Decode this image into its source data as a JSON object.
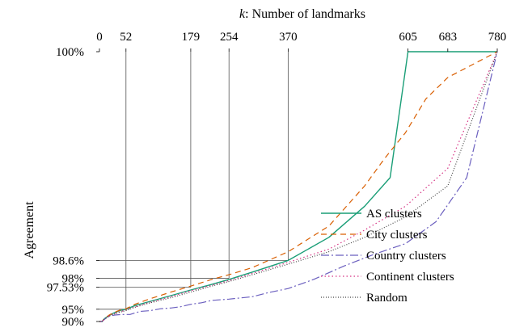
{
  "chart_data": {
    "type": "line",
    "title": "",
    "xlabel_var": "k",
    "xlabel_rest": ": Number of landmarks",
    "ylabel": "Agreement",
    "xlim": [
      0,
      780
    ],
    "ylim": [
      90,
      100
    ],
    "y_scale": "reciprocal",
    "x_ticks": [
      0,
      52,
      179,
      254,
      370,
      605,
      683,
      780
    ],
    "x_tick_labels": [
      "0",
      "52",
      "179",
      "254",
      "370",
      "605",
      "683",
      "780"
    ],
    "y_ticks": [
      90,
      95,
      97.53,
      98,
      98.6,
      100
    ],
    "y_tick_labels": [
      "90%",
      "95%",
      "97.53%",
      "98%",
      "98.6%",
      "100%"
    ],
    "grid": false,
    "legend_position": "lower-right",
    "reference_guides": [
      {
        "x": 52,
        "y": 95
      },
      {
        "x": 179,
        "y": 97.53
      },
      {
        "x": 254,
        "y": 98
      },
      {
        "x": 370,
        "y": 98.6
      }
    ],
    "series": [
      {
        "name": "AS clusters",
        "color": "#1a9e77",
        "dash": "solid",
        "x": [
          0,
          5,
          10,
          15,
          20,
          30,
          40,
          52,
          70,
          100,
          140,
          179,
          220,
          254,
          300,
          370,
          450,
          520,
          570,
          605,
          683,
          780
        ],
        "y": [
          90,
          90,
          91.8,
          92.7,
          93.4,
          94.2,
          94.7,
          95.0,
          95.7,
          96.3,
          96.9,
          97.35,
          97.7,
          97.95,
          98.25,
          98.6,
          99.05,
          99.4,
          99.6,
          100,
          100,
          100
        ]
      },
      {
        "name": "City clusters",
        "color": "#d95f02",
        "dash": "7,5",
        "x": [
          0,
          5,
          10,
          15,
          20,
          30,
          40,
          52,
          70,
          100,
          140,
          179,
          220,
          254,
          300,
          370,
          450,
          520,
          560,
          600,
          640,
          683,
          780
        ],
        "y": [
          90,
          90,
          91.9,
          92.8,
          93.5,
          94.3,
          94.8,
          95.1,
          95.9,
          96.6,
          97.2,
          97.6,
          97.95,
          98.15,
          98.4,
          98.8,
          99.2,
          99.55,
          99.7,
          99.8,
          99.9,
          99.95,
          100
        ]
      },
      {
        "name": "Country clusters",
        "color": "#6b5fbf",
        "dash": "10,3,2,3",
        "x": [
          0,
          5,
          10,
          15,
          20,
          30,
          40,
          50,
          60,
          70,
          80,
          100,
          120,
          140,
          160,
          180,
          200,
          220,
          254,
          300,
          330,
          370,
          420,
          480,
          540,
          600,
          660,
          720,
          780
        ],
        "y": [
          90,
          90,
          91.5,
          92.4,
          93.0,
          93.4,
          93.55,
          93.6,
          93.6,
          94.1,
          94.5,
          94.7,
          95.1,
          95.25,
          95.5,
          95.9,
          96.1,
          96.4,
          96.55,
          96.8,
          97.15,
          97.45,
          97.95,
          98.45,
          98.75,
          98.95,
          99.25,
          99.6,
          100
        ]
      },
      {
        "name": "Continent clusters",
        "color": "#d63384",
        "dash": "1.5,3",
        "x": [
          0,
          5,
          10,
          15,
          20,
          30,
          40,
          52,
          70,
          100,
          140,
          179,
          220,
          254,
          300,
          370,
          450,
          520,
          600,
          683,
          780
        ],
        "y": [
          90,
          90,
          91.7,
          92.5,
          93.2,
          93.9,
          94.4,
          94.8,
          95.5,
          96.2,
          96.8,
          97.3,
          97.65,
          97.9,
          98.2,
          98.55,
          98.85,
          99.15,
          99.4,
          99.65,
          100
        ]
      },
      {
        "name": "Random",
        "color": "#444444",
        "dash": "1,2",
        "x": [
          0,
          5,
          10,
          15,
          20,
          30,
          40,
          52,
          70,
          100,
          140,
          179,
          220,
          254,
          300,
          370,
          450,
          520,
          600,
          683,
          780
        ],
        "y": [
          90,
          90,
          91.6,
          92.5,
          93.1,
          93.8,
          94.3,
          94.7,
          95.4,
          96.1,
          96.7,
          97.2,
          97.6,
          97.85,
          98.15,
          98.5,
          98.8,
          99.05,
          99.3,
          99.55,
          100
        ]
      }
    ]
  }
}
